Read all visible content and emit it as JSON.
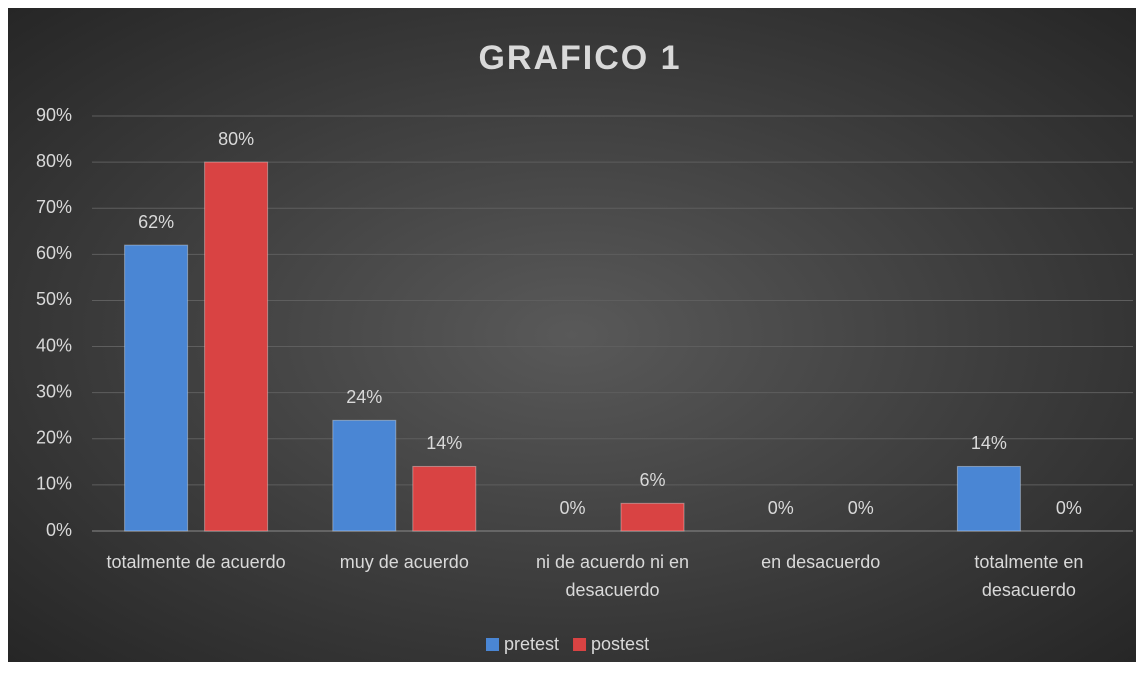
{
  "chart_data": {
    "type": "bar",
    "title": "GRAFICO 1",
    "categories": [
      "totalmente de acuerdo",
      "muy de acuerdo",
      "ni de acuerdo ni en desacuerdo",
      "en desacuerdo",
      "totalmente en desacuerdo"
    ],
    "series": [
      {
        "name": "pretest",
        "color": "#4a86d4",
        "values": [
          62,
          24,
          0,
          0,
          14
        ],
        "value_labels": [
          "62%",
          "24%",
          "0%",
          "0%",
          "14%"
        ]
      },
      {
        "name": "postest",
        "color": "#d94343",
        "values": [
          80,
          14,
          6,
          0,
          0
        ],
        "value_labels": [
          "80%",
          "14%",
          "6%",
          "0%",
          "0%"
        ]
      }
    ],
    "ylim": [
      0,
      90
    ],
    "yticks": [
      {
        "value": 0,
        "label": "0%"
      },
      {
        "value": 10,
        "label": "10%"
      },
      {
        "value": 20,
        "label": "20%"
      },
      {
        "value": 30,
        "label": "30%"
      },
      {
        "value": 40,
        "label": "40%"
      },
      {
        "value": 50,
        "label": "50%"
      },
      {
        "value": 60,
        "label": "60%"
      },
      {
        "value": 70,
        "label": "70%"
      },
      {
        "value": 80,
        "label": "80%"
      },
      {
        "value": 90,
        "label": "90%"
      }
    ],
    "grid": true,
    "legend": "bottom"
  }
}
